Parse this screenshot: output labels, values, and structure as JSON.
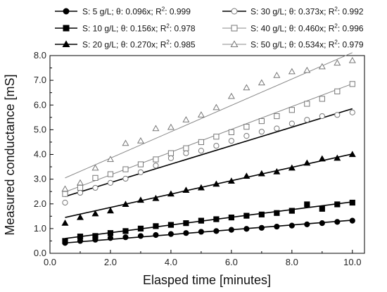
{
  "chart_data": {
    "type": "scatter",
    "title": "",
    "xlabel": "Elasped time [minutes]",
    "ylabel": "Measured conductance [mS]",
    "xlim": [
      0.0,
      10.4
    ],
    "ylim": [
      0.0,
      8.0
    ],
    "xticks": [
      "0.0",
      "2.0",
      "4.0",
      "6.0",
      "8.0",
      "10.0"
    ],
    "yticks": [
      "0.0",
      "1.0",
      "2.0",
      "3.0",
      "4.0",
      "5.0",
      "6.0",
      "7.0",
      "8.0"
    ],
    "legend_position": "top, above plot, two columns",
    "x": [
      0.5,
      1.0,
      1.5,
      2.0,
      2.5,
      3.0,
      3.5,
      4.0,
      4.5,
      5.0,
      5.5,
      6.0,
      6.5,
      7.0,
      7.5,
      8.0,
      8.5,
      9.0,
      9.5,
      10.0
    ],
    "series": [
      {
        "name": "S: 5 g/L; θ: 0.096x; R",
        "r2_label": ": 0.999",
        "marker": "filled-circle",
        "line_color": "#000000",
        "fit": [
          [
            0.5,
            0.42
          ],
          [
            10.0,
            1.34
          ]
        ],
        "values": [
          0.42,
          0.5,
          0.55,
          0.62,
          0.65,
          0.7,
          0.74,
          0.78,
          0.82,
          0.87,
          0.9,
          0.95,
          0.99,
          1.03,
          1.08,
          1.12,
          1.17,
          1.22,
          1.27,
          1.32
        ]
      },
      {
        "name": "S: 10 g/L; θ: 0.156x; R",
        "r2_label": ": 0.978",
        "marker": "filled-square",
        "line_color": "#000000",
        "fit": [
          [
            0.5,
            0.6
          ],
          [
            10.0,
            2.08
          ]
        ],
        "values": [
          0.5,
          0.68,
          0.7,
          0.82,
          0.9,
          1.0,
          1.1,
          1.15,
          1.22,
          1.32,
          1.38,
          1.45,
          1.52,
          1.57,
          1.63,
          1.72,
          1.98,
          1.8,
          1.98,
          2.05
        ]
      },
      {
        "name": "S: 20 g/L; θ: 0.270x; R",
        "r2_label": ": 0.985",
        "marker": "filled-triangle",
        "line_color": "#000000",
        "fit": [
          [
            0.5,
            1.45
          ],
          [
            10.0,
            4.02
          ]
        ],
        "values": [
          1.22,
          1.45,
          1.6,
          1.72,
          1.98,
          2.15,
          2.22,
          2.4,
          2.55,
          2.65,
          2.8,
          2.92,
          3.12,
          3.22,
          3.3,
          3.45,
          3.65,
          3.82,
          3.85,
          4.0
        ]
      },
      {
        "name": "S: 30 g/L; θ: 0.373x; R",
        "r2_label": ": 0.992",
        "marker": "open-circle",
        "line_color": "#000000",
        "fit": [
          [
            0.5,
            2.3
          ],
          [
            10.0,
            5.85
          ]
        ],
        "values": [
          2.05,
          2.45,
          2.65,
          2.85,
          3.02,
          3.28,
          3.55,
          3.85,
          4.05,
          4.15,
          4.35,
          4.55,
          4.75,
          4.92,
          5.05,
          5.25,
          5.4,
          5.55,
          5.6,
          5.7
        ]
      },
      {
        "name": "S: 40 g/L; θ: 0.460x; R",
        "r2_label": ": 0.996",
        "marker": "open-square",
        "line_color": "#888888",
        "fit": [
          [
            0.5,
            2.48
          ],
          [
            10.0,
            6.86
          ]
        ],
        "values": [
          2.4,
          2.65,
          3.05,
          3.2,
          3.4,
          3.6,
          3.8,
          4.05,
          4.25,
          4.5,
          4.72,
          4.9,
          5.12,
          5.35,
          5.55,
          5.8,
          6.05,
          6.25,
          6.55,
          6.85
        ]
      },
      {
        "name": "S: 50 g/L; θ: 0.534x; R",
        "r2_label": ": 0.979",
        "marker": "open-triangle",
        "line_color": "#888888",
        "fit": [
          [
            0.5,
            3.05
          ],
          [
            10.0,
            8.12
          ]
        ],
        "values": [
          2.6,
          2.85,
          3.45,
          3.8,
          4.45,
          4.55,
          5.05,
          5.1,
          5.4,
          5.6,
          5.9,
          6.35,
          6.7,
          6.9,
          7.2,
          7.35,
          7.4,
          7.55,
          7.7,
          7.8
        ]
      }
    ],
    "r2_symbol": "2"
  }
}
